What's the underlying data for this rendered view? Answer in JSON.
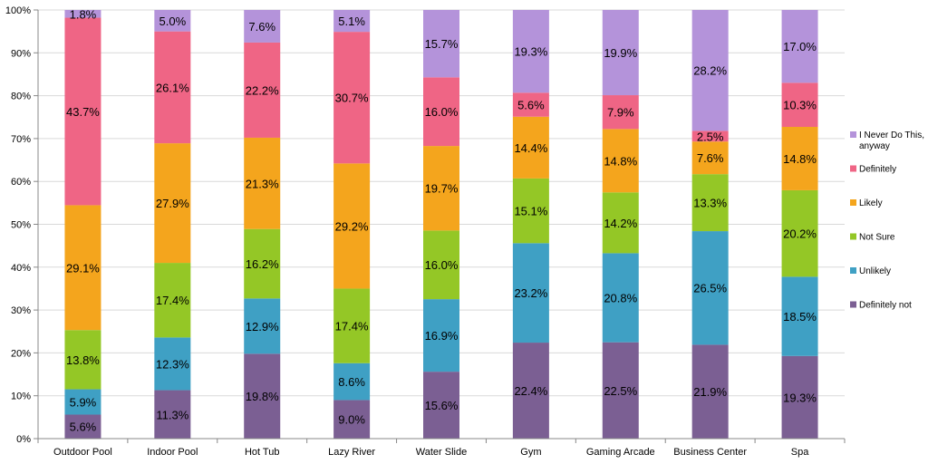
{
  "chart_data": {
    "type": "bar",
    "stacked": true,
    "percent": true,
    "categories": [
      "Outdoor Pool",
      "Indoor Pool",
      "Hot Tub",
      "Lazy River",
      "Water Slide",
      "Gym",
      "Gaming Arcade",
      "Business Center",
      "Spa"
    ],
    "series": [
      {
        "name": "Definitely not",
        "color": "#7b5f93",
        "values": [
          5.6,
          11.3,
          19.8,
          9.0,
          15.6,
          22.4,
          22.5,
          21.9,
          19.3
        ]
      },
      {
        "name": "Unlikely",
        "color": "#3fa0c4",
        "values": [
          5.9,
          12.3,
          12.9,
          8.6,
          16.9,
          23.2,
          20.8,
          26.5,
          18.5
        ]
      },
      {
        "name": "Not Sure",
        "color": "#94c726",
        "values": [
          13.8,
          17.4,
          16.2,
          17.4,
          16.0,
          15.1,
          14.2,
          13.3,
          20.2
        ]
      },
      {
        "name": "Likely",
        "color": "#f4a51d",
        "values": [
          29.1,
          27.9,
          21.3,
          29.2,
          19.7,
          14.4,
          14.8,
          7.6,
          14.8
        ]
      },
      {
        "name": "Definitely",
        "color": "#ef6585",
        "values": [
          43.7,
          26.1,
          22.2,
          30.7,
          16.0,
          5.6,
          7.9,
          2.5,
          10.3
        ]
      },
      {
        "name": "I Never Do This, anyway",
        "color": "#b493da",
        "values": [
          1.8,
          5.0,
          7.6,
          5.1,
          15.7,
          19.3,
          19.9,
          28.2,
          17.0
        ]
      }
    ],
    "y_ticks": [
      "0%",
      "10%",
      "20%",
      "30%",
      "40%",
      "50%",
      "60%",
      "70%",
      "80%",
      "90%",
      "100%"
    ],
    "ylim": [
      0,
      100
    ],
    "grid": true,
    "legend": "right",
    "title": "",
    "xlabel": "",
    "ylabel": ""
  }
}
